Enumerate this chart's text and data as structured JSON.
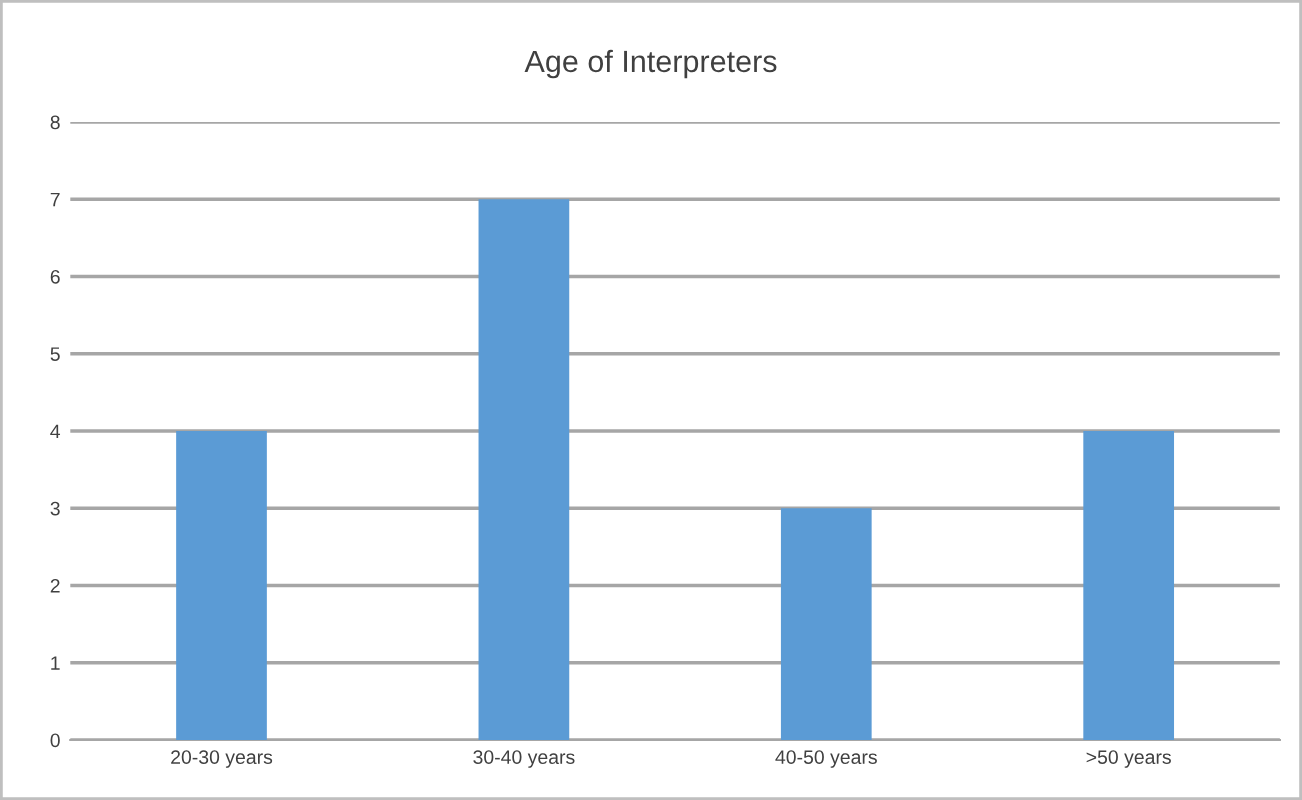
{
  "chart_data": {
    "type": "bar",
    "title": "Age of Interpreters",
    "categories": [
      "20-30 years",
      "30-40 years",
      "40-50 years",
      ">50 years"
    ],
    "values": [
      4,
      7,
      3,
      4
    ],
    "color": "#5b9bd5",
    "ylim": [
      0,
      8
    ],
    "yticks": [
      0,
      1,
      2,
      3,
      4,
      5,
      6,
      7,
      8
    ],
    "grid": "y"
  }
}
